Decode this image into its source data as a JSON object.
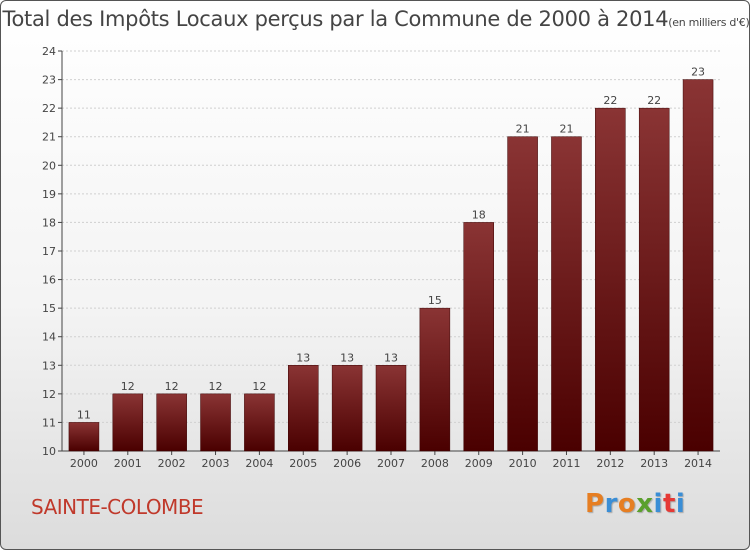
{
  "title": "Total des Impôts Locaux perçus par la Commune de 2000 à 2014",
  "title_unit": "(en milliers d'€)",
  "commune_name": "SAINTE-COLOMBE",
  "logo_letters": [
    "P",
    "r",
    "o",
    "x",
    "i",
    "t",
    "i"
  ],
  "colors": {
    "bar_top": "#8a3434",
    "bar_bottom": "#4a0000",
    "commune": "#c0392b",
    "grid": "#d0d0d0"
  },
  "chart_data": {
    "type": "bar",
    "title": "Total des Impôts Locaux perçus par la Commune de 2000 à 2014",
    "xlabel": "",
    "ylabel": "",
    "categories": [
      "2000",
      "2001",
      "2002",
      "2003",
      "2004",
      "2005",
      "2006",
      "2007",
      "2008",
      "2009",
      "2010",
      "2011",
      "2012",
      "2013",
      "2014"
    ],
    "values": [
      11,
      12,
      12,
      12,
      12,
      13,
      13,
      13,
      15,
      18,
      21,
      21,
      22,
      22,
      23
    ],
    "ylim": [
      10,
      24
    ],
    "yticks": [
      10,
      11,
      12,
      13,
      14,
      15,
      16,
      17,
      18,
      19,
      20,
      21,
      22,
      23,
      24
    ],
    "grid": true
  }
}
